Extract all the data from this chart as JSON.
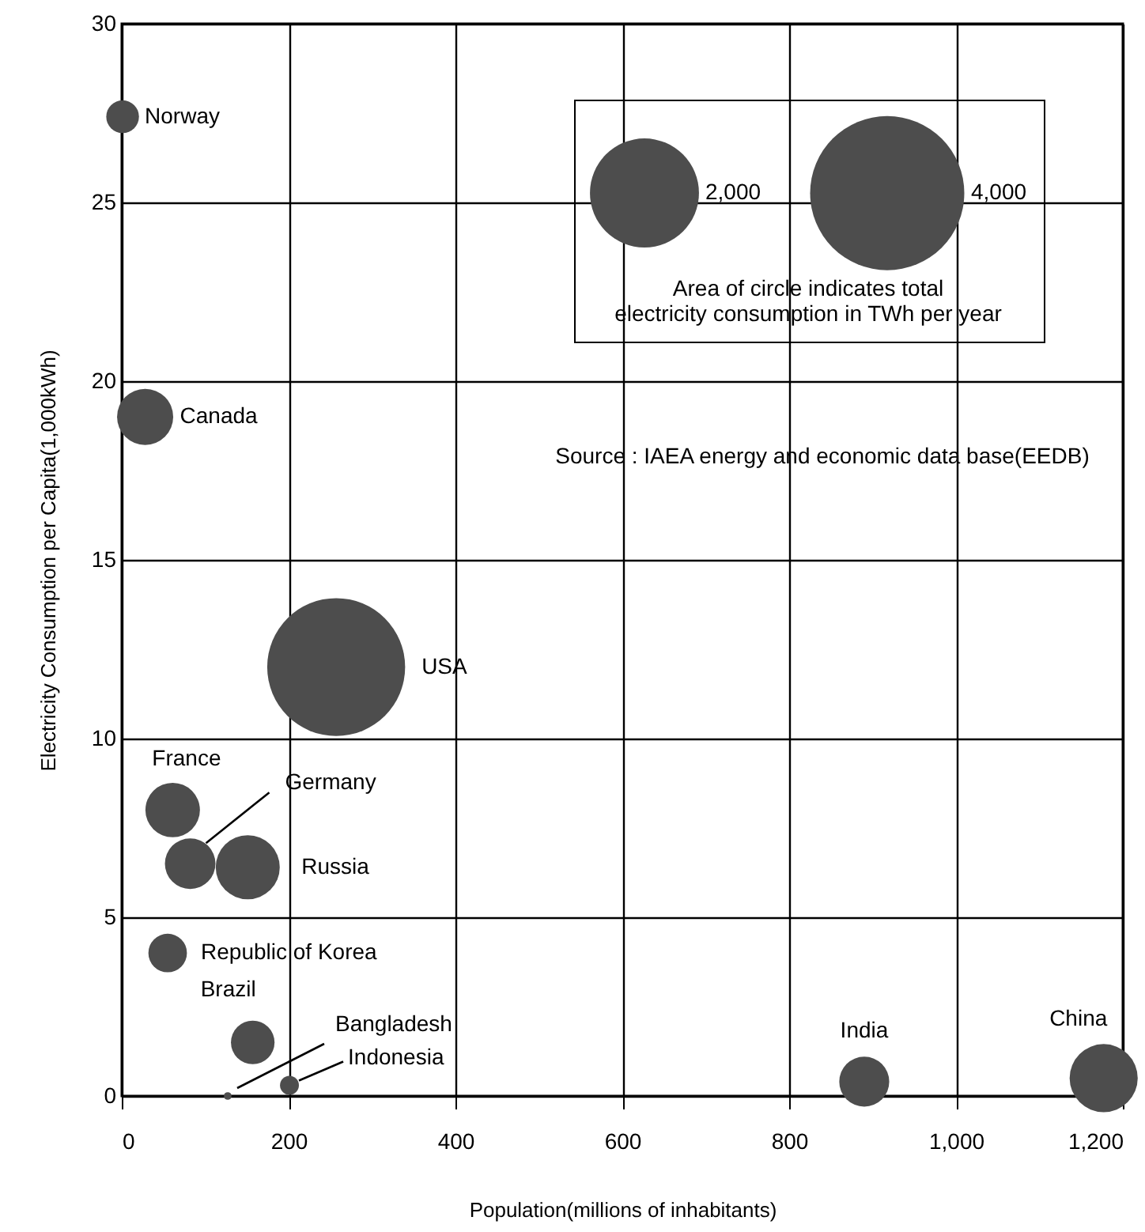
{
  "chart_data": {
    "type": "bubble",
    "xlabel": "Population(millions of inhabitants)",
    "ylabel": "Electricity Consumption per Capita(1,000kWh)",
    "legend_title": "Area of circle indicates total electricity consumption in TWh per year",
    "annotations": [
      "Source : IAEA energy and economic data base(EEDB)"
    ],
    "xlim": [
      0,
      1200
    ],
    "xticks": [
      0,
      200,
      400,
      600,
      800,
      {
        "value": 1000,
        "label": "1,000"
      },
      {
        "value": 1200,
        "label": "1,200"
      }
    ],
    "ylim": [
      0,
      30
    ],
    "yticks": [
      0,
      5,
      10,
      15,
      20,
      25,
      30
    ],
    "grid": true,
    "size_legend": [
      {
        "value": 2000,
        "label": "2,000"
      },
      {
        "value": 4000,
        "label": "4,000"
      }
    ],
    "series": [
      {
        "name": "Norway",
        "color": "#4d4d4d",
        "x": [
          1
        ],
        "values": [
          27.4
        ],
        "sizes": [
          180
        ]
      },
      {
        "name": "Canada",
        "color": "#4d4d4d",
        "x": [
          28
        ],
        "values": [
          19.0
        ],
        "sizes": [
          530
        ]
      },
      {
        "name": "USA",
        "color": "#4d4d4d",
        "x": [
          257
        ],
        "values": [
          12.0
        ],
        "sizes": [
          3200
        ]
      },
      {
        "name": "France",
        "color": "#4d4d4d",
        "x": [
          61
        ],
        "values": [
          8.0
        ],
        "sizes": [
          500
        ]
      },
      {
        "name": "Germany",
        "color": "#4d4d4d",
        "x": [
          82
        ],
        "values": [
          6.5
        ],
        "sizes": [
          430
        ]
      },
      {
        "name": "Russia",
        "color": "#4d4d4d",
        "x": [
          151
        ],
        "values": [
          6.4
        ],
        "sizes": [
          690
        ]
      },
      {
        "name": "Republic of Korea",
        "color": "#4d4d4d",
        "x": [
          55
        ],
        "values": [
          4.0
        ],
        "sizes": [
          250
        ]
      },
      {
        "name": "Brazil",
        "color": "#4d4d4d",
        "x": [
          157
        ],
        "values": [
          1.5
        ],
        "sizes": [
          320
        ]
      },
      {
        "name": "Bangladesh",
        "color": "#4d4d4d",
        "x": [
          127
        ],
        "values": [
          0.0
        ],
        "sizes": [
          10
        ]
      },
      {
        "name": "Indonesia",
        "color": "#4d4d4d",
        "x": [
          201
        ],
        "values": [
          0.3
        ],
        "sizes": [
          60
        ]
      },
      {
        "name": "India",
        "color": "#4d4d4d",
        "x": [
          890
        ],
        "values": [
          0.4
        ],
        "sizes": [
          420
        ]
      },
      {
        "name": "China",
        "color": "#4d4d4d",
        "x": [
          1177
        ],
        "values": [
          0.5
        ],
        "sizes": [
          780
        ]
      }
    ]
  }
}
